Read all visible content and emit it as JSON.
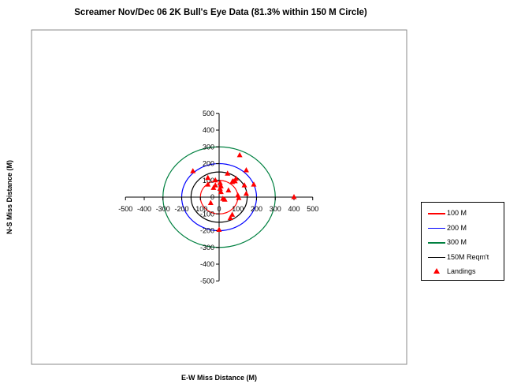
{
  "chart_data": {
    "type": "scatter",
    "title": "Screamer Nov/Dec 06 2K Bull's Eye Data (81.3% within 150 M Circle)",
    "xlabel": "E-W Miss Distance (M)",
    "ylabel": "N-S Miss Distance (M)",
    "xlim": [
      -500,
      500
    ],
    "ylim": [
      -500,
      500
    ],
    "x_ticks": [
      "-500",
      "-400",
      "-300",
      "-200",
      "-100",
      "0",
      "100",
      "200",
      "300",
      "400",
      "500"
    ],
    "y_ticks": [
      "500",
      "400",
      "300",
      "200",
      "100",
      "0",
      "-100",
      "-200",
      "-300",
      "-400",
      "-500"
    ],
    "grid": false,
    "legend_position": "right",
    "circles": [
      {
        "name": "100 M",
        "radius": 100,
        "color": "#ff0000"
      },
      {
        "name": "200 M",
        "radius": 200,
        "color": "#0000ff"
      },
      {
        "name": "300 M",
        "radius": 300,
        "color": "#008040"
      },
      {
        "name": "150M Reqm't",
        "radius": 150,
        "color": "#000000"
      }
    ],
    "series": [
      {
        "name": "Landings",
        "color": "#ff0000",
        "marker": "triangle",
        "points": [
          [
            -140,
            155
          ],
          [
            110,
            250
          ],
          [
            145,
            160
          ],
          [
            -60,
            115
          ],
          [
            -20,
            100
          ],
          [
            -60,
            75
          ],
          [
            -20,
            70
          ],
          [
            -30,
            55
          ],
          [
            5,
            85
          ],
          [
            10,
            65
          ],
          [
            5,
            50
          ],
          [
            10,
            30
          ],
          [
            45,
            140
          ],
          [
            85,
            95
          ],
          [
            90,
            110
          ],
          [
            70,
            90
          ],
          [
            75,
            95
          ],
          [
            135,
            70
          ],
          [
            145,
            20
          ],
          [
            185,
            75
          ],
          [
            100,
            10
          ],
          [
            105,
            -5
          ],
          [
            50,
            40
          ],
          [
            20,
            -10
          ],
          [
            30,
            -15
          ],
          [
            -45,
            -35
          ],
          [
            70,
            -105
          ],
          [
            60,
            -125
          ],
          [
            0,
            -195
          ],
          [
            400,
            0
          ]
        ]
      }
    ]
  },
  "legend": {
    "items": [
      {
        "label": "100 M",
        "color": "#ff0000",
        "kind": "line"
      },
      {
        "label": "200 M",
        "color": "#0000ff",
        "kind": "line"
      },
      {
        "label": "300 M",
        "color": "#008040",
        "kind": "line"
      },
      {
        "label": "150M Reqm't",
        "color": "#000000",
        "kind": "line"
      },
      {
        "label": "Landings",
        "color": "#ff0000",
        "kind": "triangle"
      }
    ]
  }
}
